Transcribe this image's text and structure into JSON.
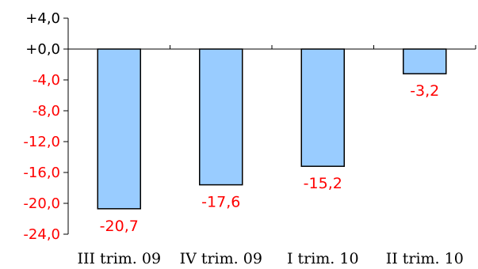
{
  "chart_data": {
    "type": "bar",
    "categories": [
      "III trim. 09",
      "IV trim. 09",
      "I trim. 10",
      "II trim. 10"
    ],
    "values": [
      -20.7,
      -17.6,
      -15.2,
      -3.2
    ],
    "value_labels": [
      "-20,7",
      "-17,6",
      "-15,2",
      "-3,2"
    ],
    "y_ticks": [
      4,
      0,
      -4,
      -8,
      -12,
      -16,
      -20,
      -24
    ],
    "y_tick_labels": [
      "+4,0",
      "+0,0",
      "-4,0",
      "-8,0",
      "-12,0",
      "-16,0",
      "-20,0",
      "-24,0"
    ],
    "ylim": [
      -24,
      4
    ],
    "grid": false,
    "legend": false,
    "colors": {
      "bar_fill": "#99ccff",
      "bar_stroke": "#000000",
      "negative_label": "#ff0000",
      "positive_label": "#000000",
      "axis": "#000000"
    }
  }
}
